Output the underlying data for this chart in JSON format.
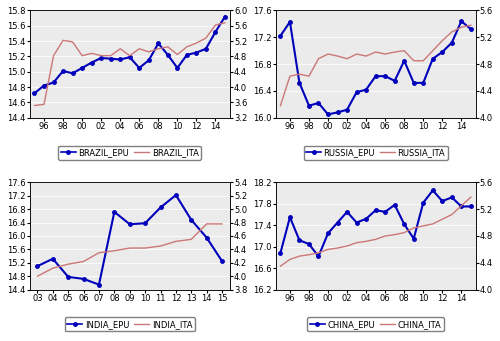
{
  "brazil": {
    "epu_x": [
      1995,
      1996,
      1997,
      1998,
      1999,
      2000,
      2001,
      2002,
      2003,
      2004,
      2005,
      2006,
      2007,
      2008,
      2009,
      2010,
      2011,
      2012,
      2013,
      2014,
      2015
    ],
    "epu_y": [
      14.72,
      14.82,
      14.86,
      15.01,
      14.98,
      15.05,
      15.12,
      15.18,
      15.17,
      15.16,
      15.19,
      15.05,
      15.15,
      15.37,
      15.22,
      15.05,
      15.22,
      15.25,
      15.3,
      15.52,
      15.72
    ],
    "ita_x": [
      1995,
      1996,
      1997,
      1998,
      1999,
      2000,
      2001,
      2002,
      2003,
      2004,
      2005,
      2006,
      2007,
      2008,
      2009,
      2010,
      2011,
      2012,
      2013,
      2014,
      2015
    ],
    "ita_y": [
      3.52,
      3.55,
      4.82,
      5.22,
      5.18,
      4.82,
      4.88,
      4.82,
      4.82,
      5.0,
      4.82,
      5.0,
      4.92,
      5.0,
      5.05,
      4.85,
      5.05,
      5.15,
      5.28,
      5.62,
      5.68
    ],
    "epu_ylim": [
      14.4,
      15.8
    ],
    "ita_ylim": [
      3.2,
      6.0
    ],
    "xtick_pos": [
      1996,
      1998,
      2000,
      2002,
      2004,
      2006,
      2008,
      2010,
      2012,
      2014
    ],
    "xtick_labels": [
      "96",
      "98",
      "00",
      "02",
      "04",
      "06",
      "08",
      "10",
      "12",
      "14"
    ],
    "epu_yticks": [
      14.4,
      14.6,
      14.8,
      15.0,
      15.2,
      15.4,
      15.6,
      15.8
    ],
    "ita_yticks": [
      3.2,
      3.6,
      4.0,
      4.4,
      4.8,
      5.2,
      5.6,
      6.0
    ]
  },
  "russia": {
    "epu_x": [
      1995,
      1996,
      1997,
      1998,
      1999,
      2000,
      2001,
      2002,
      2003,
      2004,
      2005,
      2006,
      2007,
      2008,
      2009,
      2010,
      2011,
      2012,
      2013,
      2014,
      2015
    ],
    "epu_y": [
      17.22,
      17.43,
      16.52,
      16.18,
      16.22,
      16.05,
      16.08,
      16.12,
      16.38,
      16.42,
      16.62,
      16.62,
      16.55,
      16.85,
      16.52,
      16.52,
      16.88,
      16.98,
      17.12,
      17.44,
      17.32
    ],
    "ita_x": [
      1995,
      1996,
      1997,
      1998,
      1999,
      2000,
      2001,
      2002,
      2003,
      2004,
      2005,
      2006,
      2007,
      2008,
      2009,
      2010,
      2011,
      2012,
      2013,
      2014,
      2015
    ],
    "ita_y": [
      4.18,
      4.62,
      4.65,
      4.62,
      4.88,
      4.95,
      4.92,
      4.88,
      4.95,
      4.92,
      4.98,
      4.95,
      4.98,
      5.0,
      4.85,
      4.85,
      5.0,
      5.15,
      5.28,
      5.35,
      5.38
    ],
    "epu_ylim": [
      16.0,
      17.6
    ],
    "ita_ylim": [
      4.0,
      5.6
    ],
    "xtick_pos": [
      1996,
      1998,
      2000,
      2002,
      2004,
      2006,
      2008,
      2010,
      2012,
      2014
    ],
    "xtick_labels": [
      "96",
      "98",
      "00",
      "02",
      "04",
      "06",
      "08",
      "10",
      "12",
      "14"
    ],
    "epu_yticks": [
      16.0,
      16.4,
      16.8,
      17.2,
      17.6
    ],
    "ita_yticks": [
      4.0,
      4.4,
      4.8,
      5.2,
      5.6
    ]
  },
  "india": {
    "epu_x": [
      2003,
      2004,
      2005,
      2006,
      2007,
      2008,
      2009,
      2010,
      2011,
      2012,
      2013,
      2014,
      2015
    ],
    "epu_y": [
      15.1,
      15.32,
      14.78,
      14.72,
      14.55,
      16.72,
      16.35,
      16.38,
      16.85,
      17.22,
      16.48,
      15.95,
      15.25
    ],
    "ita_x": [
      2003,
      2004,
      2005,
      2006,
      2007,
      2008,
      2009,
      2010,
      2011,
      2012,
      2013,
      2014,
      2015
    ],
    "ita_y": [
      4.0,
      4.12,
      4.18,
      4.22,
      4.35,
      4.38,
      4.42,
      4.42,
      4.45,
      4.52,
      4.55,
      4.78,
      4.78
    ],
    "epu_ylim": [
      14.4,
      17.6
    ],
    "ita_ylim": [
      3.8,
      5.4
    ],
    "xtick_pos": [
      2003,
      2004,
      2005,
      2006,
      2007,
      2008,
      2009,
      2010,
      2011,
      2012,
      2013,
      2014,
      2015
    ],
    "xtick_labels": [
      "03",
      "04",
      "05",
      "06",
      "07",
      "08",
      "09",
      "10",
      "11",
      "12",
      "13",
      "14",
      "15"
    ],
    "epu_yticks": [
      14.4,
      14.8,
      15.2,
      15.6,
      16.0,
      16.4,
      16.8,
      17.2,
      17.6
    ],
    "ita_yticks": [
      3.8,
      4.0,
      4.2,
      4.4,
      4.6,
      4.8,
      5.0,
      5.2,
      5.4
    ]
  },
  "china": {
    "epu_x": [
      1995,
      1996,
      1997,
      1998,
      1999,
      2000,
      2001,
      2002,
      2003,
      2004,
      2005,
      2006,
      2007,
      2008,
      2009,
      2010,
      2011,
      2012,
      2013,
      2014,
      2015
    ],
    "epu_y": [
      16.88,
      17.55,
      17.12,
      17.05,
      16.82,
      17.25,
      17.45,
      17.65,
      17.45,
      17.52,
      17.68,
      17.65,
      17.78,
      17.42,
      17.15,
      17.82,
      18.05,
      17.85,
      17.92,
      17.75,
      17.75
    ],
    "ita_x": [
      1995,
      1996,
      1997,
      1998,
      1999,
      2000,
      2001,
      2002,
      2003,
      2004,
      2005,
      2006,
      2007,
      2008,
      2009,
      2010,
      2011,
      2012,
      2013,
      2014,
      2015
    ],
    "ita_y": [
      4.35,
      4.45,
      4.5,
      4.52,
      4.55,
      4.6,
      4.62,
      4.65,
      4.7,
      4.72,
      4.75,
      4.8,
      4.82,
      4.85,
      4.92,
      4.95,
      4.98,
      5.05,
      5.12,
      5.25,
      5.38
    ],
    "epu_ylim": [
      16.2,
      18.2
    ],
    "ita_ylim": [
      4.0,
      5.6
    ],
    "xtick_pos": [
      1996,
      1998,
      2000,
      2002,
      2004,
      2006,
      2008,
      2010,
      2012,
      2014
    ],
    "xtick_labels": [
      "96",
      "98",
      "00",
      "02",
      "04",
      "06",
      "08",
      "10",
      "12",
      "14"
    ],
    "epu_yticks": [
      16.2,
      16.6,
      17.0,
      17.4,
      17.8,
      18.2
    ],
    "ita_yticks": [
      4.0,
      4.4,
      4.8,
      5.2,
      5.6
    ]
  },
  "epu_color": "#0000BB",
  "ita_color": "#CC7777",
  "epu_marker": "o",
  "epu_linewidth": 1.5,
  "ita_linewidth": 1.0,
  "marker_size": 2.5,
  "tick_fontsize": 6.0,
  "legend_fontsize": 6.0,
  "bg_color": "#EBEBEB"
}
